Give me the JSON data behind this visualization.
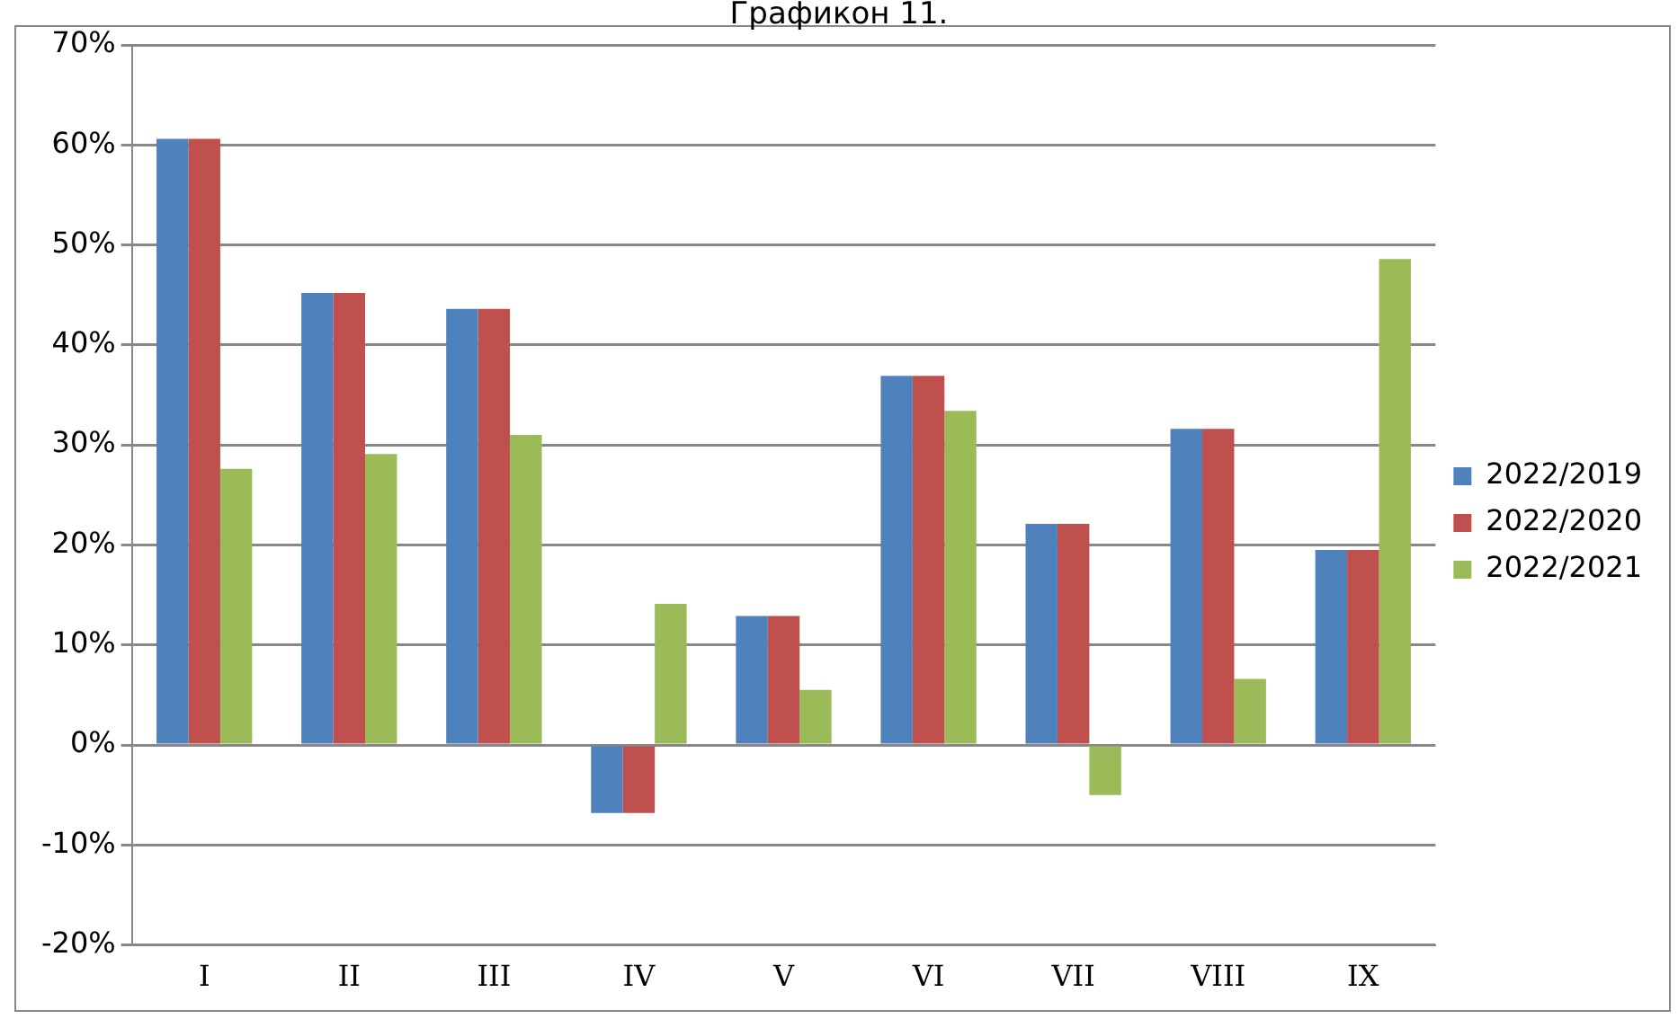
{
  "chart_data": {
    "type": "bar",
    "title": "Графикон 11.",
    "categories": [
      "I",
      "II",
      "III",
      "IV",
      "V",
      "VI",
      "VII",
      "VIII",
      "IX"
    ],
    "series": [
      {
        "name": "2022/2019",
        "color": "#4f81bd",
        "values": [
          60.6,
          45.2,
          43.6,
          -6.8,
          12.9,
          36.9,
          22.1,
          31.6,
          19.5
        ]
      },
      {
        "name": "2022/2020",
        "color": "#c0504d",
        "values": [
          60.6,
          45.2,
          43.6,
          -6.8,
          12.9,
          36.9,
          22.1,
          31.6,
          19.5
        ]
      },
      {
        "name": "2022/2021",
        "color": "#9bbb59",
        "values": [
          27.6,
          29.1,
          31.0,
          14.1,
          5.5,
          33.4,
          -5.0,
          6.6,
          48.6
        ]
      }
    ],
    "ylim": [
      -20,
      70
    ],
    "yticks": [
      {
        "value": -20,
        "label": "-20%"
      },
      {
        "value": -10,
        "label": "-10%"
      },
      {
        "value": 0,
        "label": "0%"
      },
      {
        "value": 10,
        "label": "10%"
      },
      {
        "value": 20,
        "label": "20%"
      },
      {
        "value": 30,
        "label": "30%"
      },
      {
        "value": 40,
        "label": "40%"
      },
      {
        "value": 50,
        "label": "50%"
      },
      {
        "value": 60,
        "label": "60%"
      },
      {
        "value": 70,
        "label": "70%"
      }
    ],
    "grid": "y",
    "legend": "right"
  }
}
